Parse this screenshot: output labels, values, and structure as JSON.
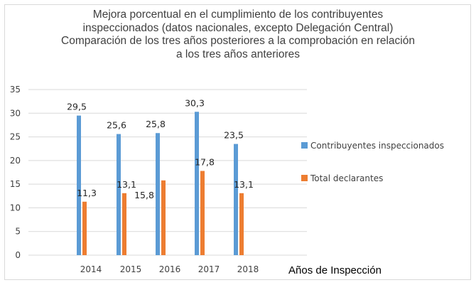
{
  "chart_data": {
    "type": "bar",
    "title_lines": [
      "Mejora porcentual en el cumplimiento de los contribuyentes",
      "inspeccionados (datos nacionales, excepto Delegación Central)",
      "Comparación de los tres años posteriores a la comprobación en relación",
      "a los tres años anteriores"
    ],
    "categories": [
      "2014",
      "2015",
      "2016",
      "2017",
      "2018"
    ],
    "series": [
      {
        "name": "Contribuyentes inspeccionados",
        "color": "#5b9bd5",
        "values": [
          29.5,
          25.6,
          25.8,
          30.3,
          23.5
        ],
        "labels": [
          "29,5",
          "25,6",
          "25,8",
          "30,3",
          "23,5"
        ]
      },
      {
        "name": "Total declarantes",
        "color": "#ed7d31",
        "values": [
          11.3,
          13.1,
          15.8,
          17.8,
          13.1
        ],
        "labels": [
          "11,3",
          "13,1",
          "15,8",
          "17,8",
          "13,1"
        ]
      }
    ],
    "xlabel": "Años de Inspección",
    "ylabel": "",
    "ylim": [
      0,
      35
    ],
    "yticks": [
      0,
      5,
      10,
      15,
      20,
      25,
      30,
      35
    ],
    "grid": true,
    "legend_position": "right"
  }
}
